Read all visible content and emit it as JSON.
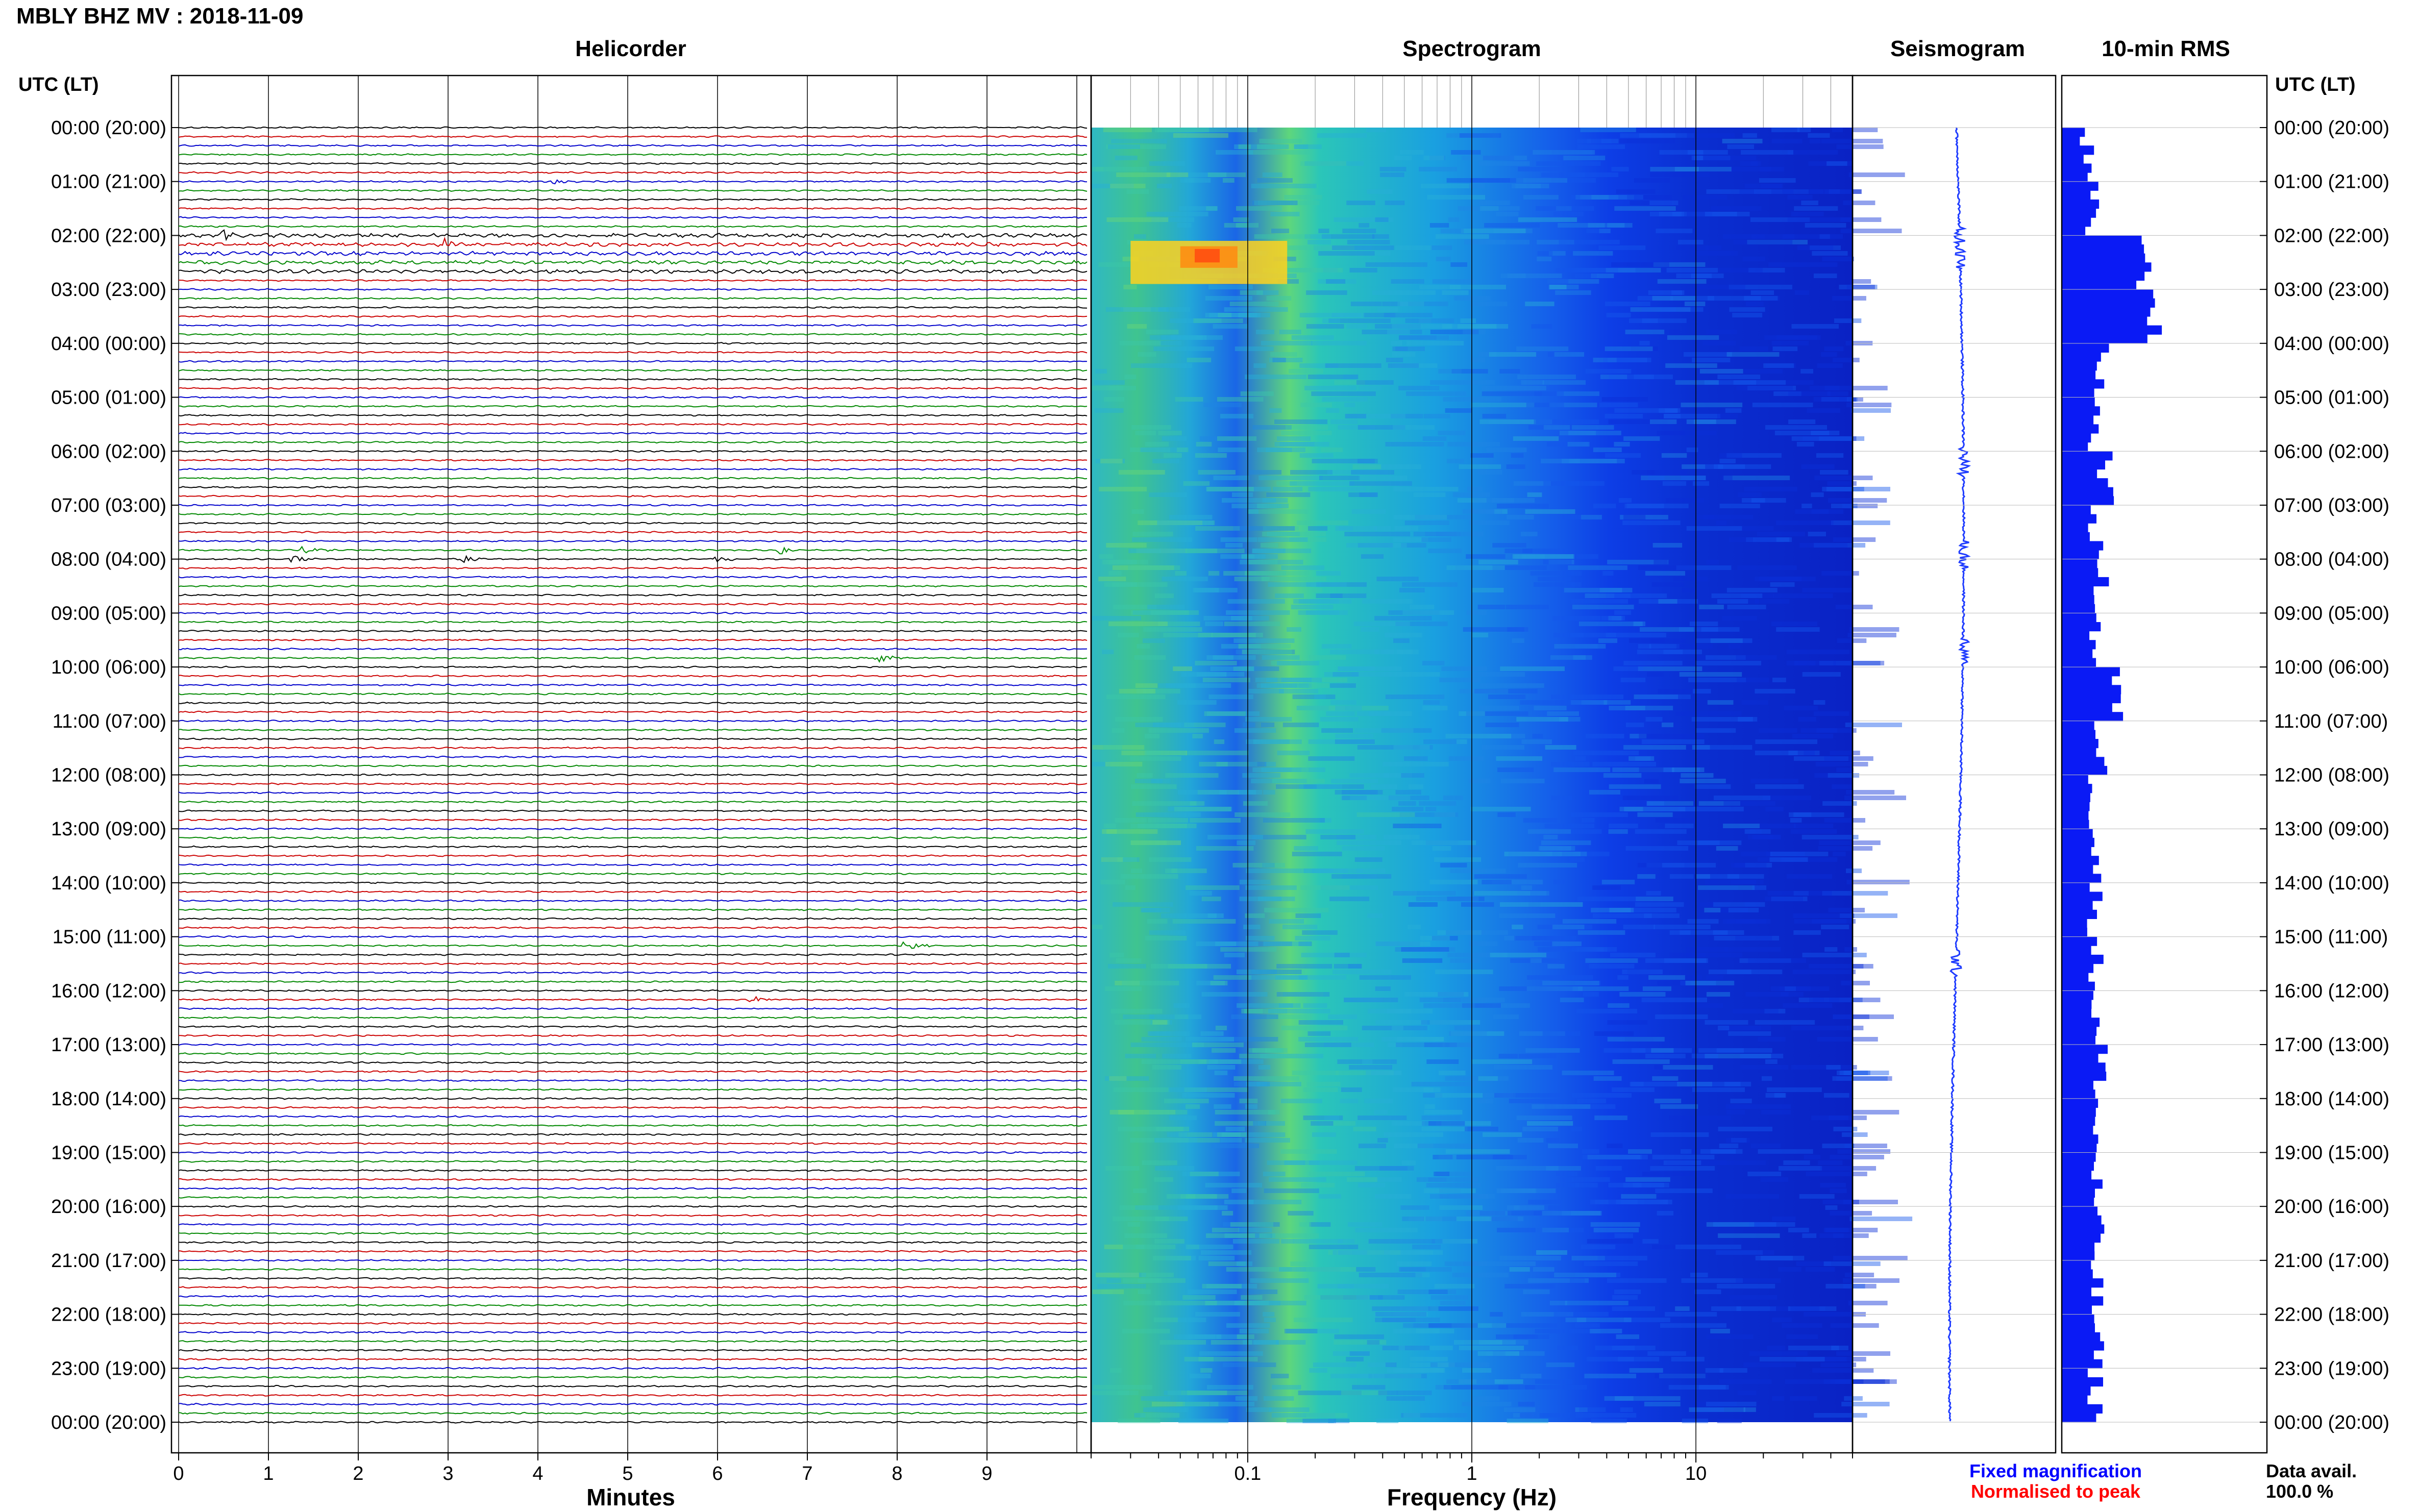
{
  "title": "MBLY BHZ MV : 2018-11-09",
  "left_axis_label": "UTC (LT)",
  "right_axis_label": "UTC (LT)",
  "panels": {
    "helicorder": "Helicorder",
    "spectrogram": "Spectrogram",
    "seismogram": "Seismogram",
    "rms": "10-min RMS"
  },
  "x_labels": {
    "helicorder": "Minutes",
    "spectrogram": "Frequency (Hz)"
  },
  "legend": {
    "fixed": "Fixed magnification",
    "normalised": "Normalised to peak",
    "fixed_color": "#0000ff",
    "normalised_color": "#ff0000"
  },
  "data_avail": {
    "label": "Data avail.",
    "value": "100.0 %"
  },
  "time_labels": [
    "00:00 (20:00)",
    "01:00 (21:00)",
    "02:00 (22:00)",
    "03:00 (23:00)",
    "04:00 (00:00)",
    "05:00 (01:00)",
    "06:00 (02:00)",
    "07:00 (03:00)",
    "08:00 (04:00)",
    "09:00 (05:00)",
    "10:00 (06:00)",
    "11:00 (07:00)",
    "12:00 (08:00)",
    "13:00 (09:00)",
    "14:00 (10:00)",
    "15:00 (11:00)",
    "16:00 (12:00)",
    "17:00 (13:00)",
    "18:00 (14:00)",
    "19:00 (15:00)",
    "20:00 (16:00)",
    "21:00 (17:00)",
    "22:00 (18:00)",
    "23:00 (19:00)",
    "00:00 (20:00)"
  ],
  "minute_ticks": [
    "0",
    "1",
    "2",
    "3",
    "4",
    "5",
    "6",
    "7",
    "8",
    "9"
  ],
  "freq_ticks": [
    "0.1",
    "1",
    "10"
  ],
  "trace_colors": [
    "#000000",
    "#cc0000",
    "#0000cc",
    "#008800"
  ],
  "chart_data": {
    "type": "helicorder",
    "station": "MBLY BHZ MV",
    "date": "2018-11-09",
    "helicorder": {
      "xlim_minutes": [
        0,
        10
      ],
      "lines_per_hour": 6,
      "hours": 24,
      "events": [
        {
          "utc": "01:00",
          "minute": 4.2,
          "amp": 0.4
        },
        {
          "utc": "02:00",
          "minute": 0.5,
          "amp": 0.9
        },
        {
          "utc": "02:10",
          "minute": 3.0,
          "amp": 0.9
        },
        {
          "utc": "07:50",
          "minute": 1.4,
          "amp": 0.8
        },
        {
          "utc": "07:50",
          "minute": 6.7,
          "amp": 0.8
        },
        {
          "utc": "08:00",
          "minute": 1.3,
          "amp": 0.7
        },
        {
          "utc": "08:00",
          "minute": 3.2,
          "amp": 0.6
        },
        {
          "utc": "08:00",
          "minute": 6.0,
          "amp": 0.6
        },
        {
          "utc": "09:50",
          "minute": 7.8,
          "amp": 0.8
        },
        {
          "utc": "15:10",
          "minute": 8.1,
          "amp": 1.2
        },
        {
          "utc": "16:10",
          "minute": 6.4,
          "amp": 0.6
        }
      ]
    },
    "spectrogram": {
      "x_scale": "log",
      "freq_range_hz": [
        0.02,
        50
      ]
    },
    "rms_10min": {
      "hourly_relative": [
        0.25,
        0.3,
        0.85,
        0.95,
        0.4,
        0.35,
        0.45,
        0.35,
        0.4,
        0.35,
        0.55,
        0.4,
        0.35,
        0.35,
        0.35,
        0.35,
        0.35,
        0.4,
        0.35,
        0.35,
        0.35,
        0.35,
        0.35,
        0.35
      ]
    }
  }
}
